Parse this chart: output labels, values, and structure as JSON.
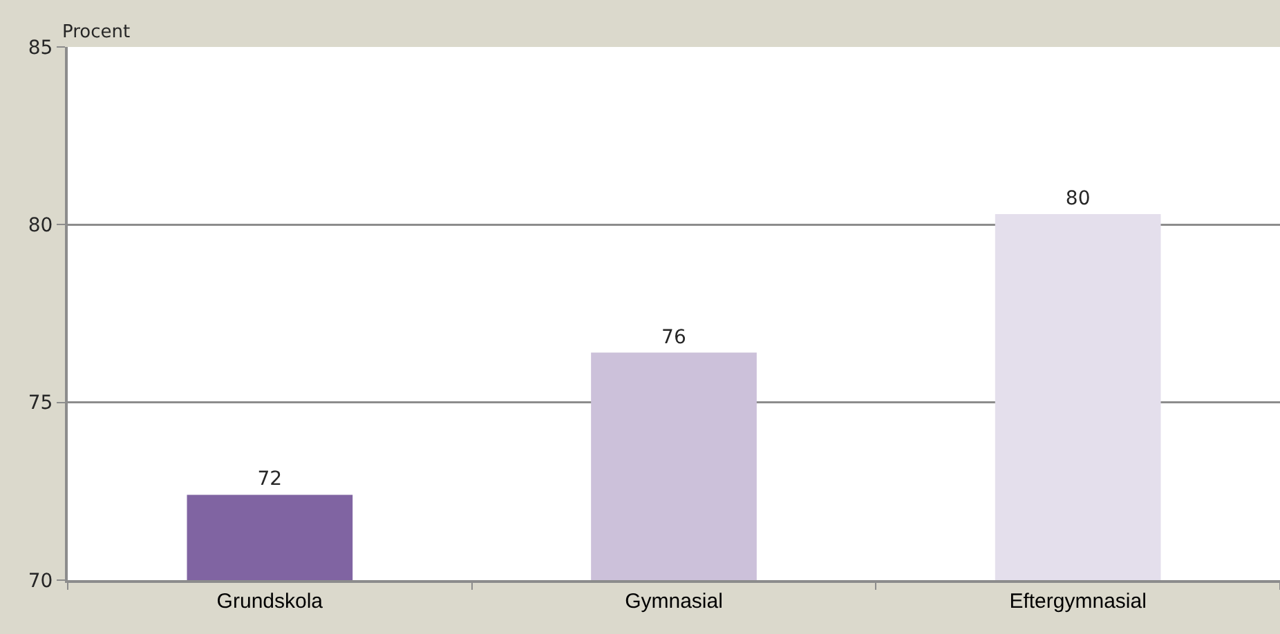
{
  "chart_data": {
    "type": "bar",
    "ylabel": "Procent",
    "categories": [
      "Grundskola",
      "Gymnasial",
      "Eftergymnasial"
    ],
    "values": [
      72.4,
      76.4,
      80.3
    ],
    "value_labels": [
      "72",
      "76",
      "80"
    ],
    "colors": [
      "#8064a2",
      "#ccc1da",
      "#e4dfec"
    ],
    "ylim": [
      70,
      85
    ],
    "yticks": [
      70,
      75,
      80,
      85
    ],
    "grid": "y"
  }
}
